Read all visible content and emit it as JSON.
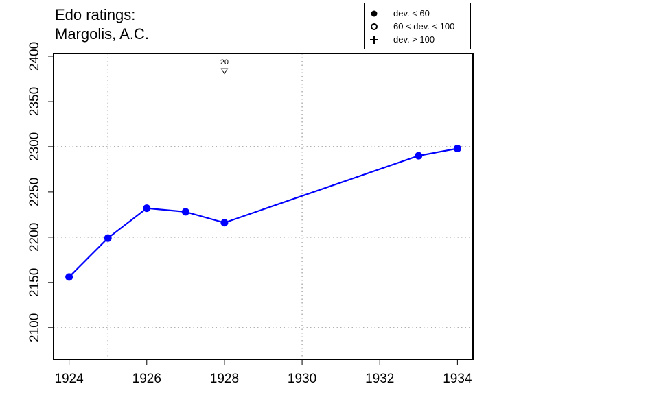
{
  "title_lines": [
    "Edo ratings:",
    "Margolis, A.C."
  ],
  "legend": [
    {
      "symbol": "filled-circle",
      "label": "dev. < 60"
    },
    {
      "symbol": "open-circle",
      "label": "60 < dev. < 100"
    },
    {
      "symbol": "plus",
      "label": "dev. > 100"
    }
  ],
  "colors": {
    "series": "#0000ff",
    "axis": "#000000",
    "grid": "#999999"
  },
  "chart_data": {
    "type": "line",
    "x": [
      1924,
      1925,
      1926,
      1927,
      1928,
      1933,
      1934
    ],
    "y": [
      2156,
      2199,
      2232,
      2228,
      2216,
      2290,
      2298
    ],
    "marker": "filled-circle",
    "xlim": [
      1923.6,
      1934.4
    ],
    "ylim": [
      2065,
      2403
    ],
    "xticks": [
      1924,
      1926,
      1928,
      1930,
      1932,
      1934
    ],
    "yticks": [
      2100,
      2150,
      2200,
      2250,
      2300,
      2350,
      2400
    ],
    "vgrid": [
      1925,
      1930
    ],
    "hgrid": [
      2100,
      2200,
      2300
    ],
    "annotations": [
      {
        "x": 1928,
        "y": 2384,
        "label": "20",
        "marker": "open-down-triangle"
      }
    ]
  }
}
